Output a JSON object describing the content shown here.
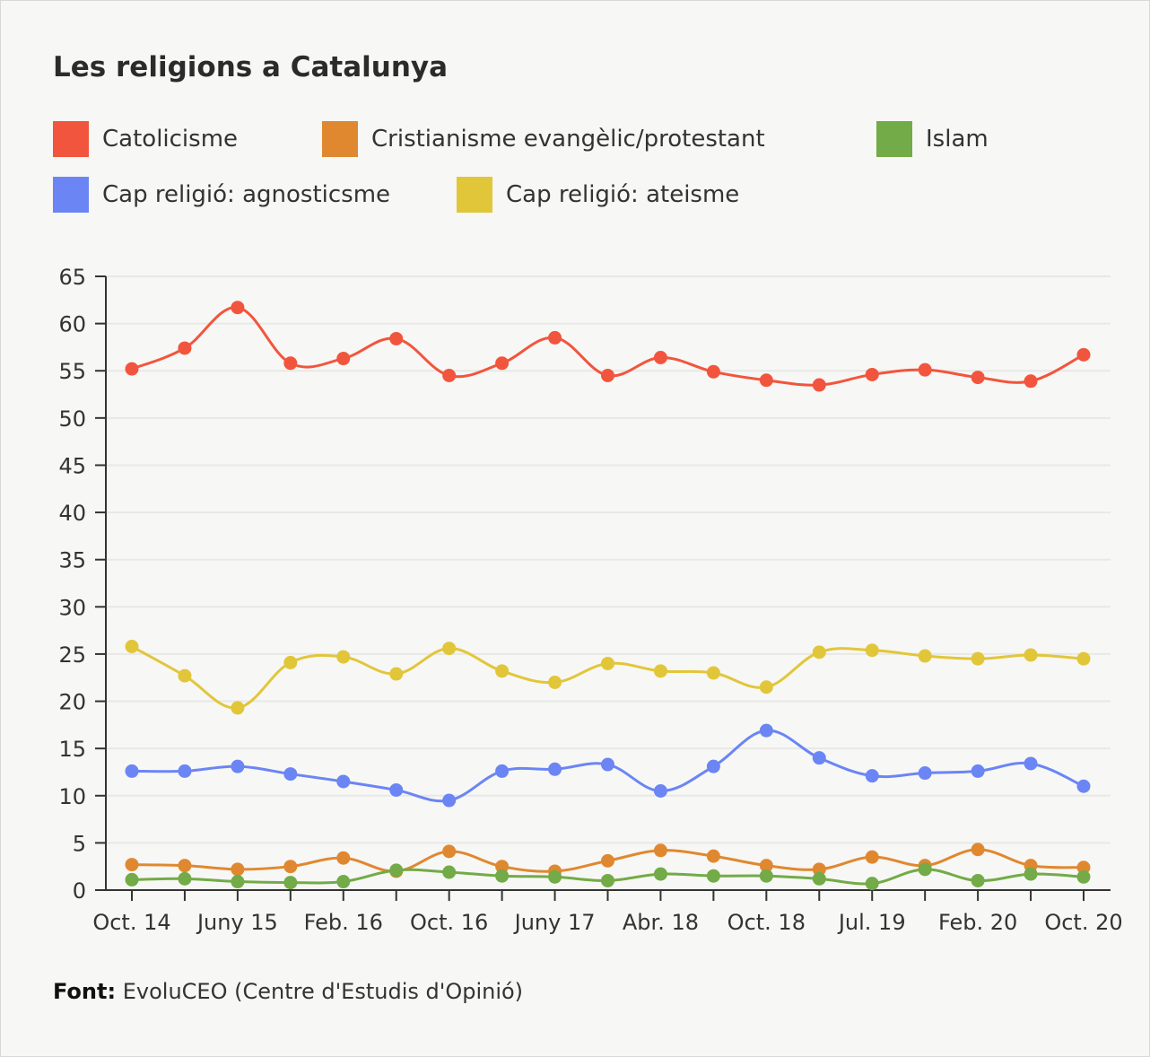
{
  "chart_data": {
    "type": "line",
    "title": "Les religions a Catalunya",
    "xlabel": "",
    "ylabel": "",
    "ylim": [
      0,
      65
    ],
    "yticks": [
      0,
      5,
      10,
      15,
      20,
      25,
      30,
      35,
      40,
      45,
      50,
      55,
      60,
      65
    ],
    "grid": true,
    "legend_position": "top",
    "x_tick_labels": [
      "Oct. 14",
      "Juny 15",
      "Feb. 16",
      "Oct. 16",
      "Juny 17",
      "Abr. 18",
      "Oct. 18",
      "Jul. 19",
      "Feb. 20",
      "Oct. 20"
    ],
    "series": [
      {
        "name": "Catolicisme",
        "color": "#f2553d",
        "values": [
          55.2,
          57.4,
          61.7,
          55.8,
          56.3,
          58.4,
          54.5,
          55.8,
          58.5,
          54.5,
          56.4,
          54.9,
          54.0,
          53.5,
          54.6,
          55.1,
          54.3,
          53.9,
          56.7
        ]
      },
      {
        "name": "Cristianisme evangèlic/protestant",
        "color": "#e08830",
        "values": [
          2.7,
          2.6,
          2.2,
          2.5,
          3.4,
          2.0,
          4.1,
          2.5,
          2.0,
          3.1,
          4.2,
          3.6,
          2.6,
          2.2,
          3.5,
          2.6,
          4.3,
          2.6,
          2.4
        ]
      },
      {
        "name": "Islam",
        "color": "#72ab47",
        "values": [
          1.1,
          1.2,
          0.9,
          0.8,
          0.9,
          2.1,
          1.9,
          1.5,
          1.4,
          1.0,
          1.7,
          1.5,
          1.5,
          1.2,
          0.7,
          2.2,
          1.0,
          1.7,
          1.4
        ]
      },
      {
        "name": "Cap religió: agnosticsme",
        "color": "#6b85f5",
        "values": [
          12.6,
          12.6,
          13.1,
          12.3,
          11.5,
          10.6,
          9.5,
          12.6,
          12.8,
          13.3,
          10.5,
          13.1,
          16.9,
          14.0,
          12.1,
          12.4,
          12.6,
          13.4,
          11.0
        ]
      },
      {
        "name": "Cap religió: ateisme",
        "color": "#e2c63a",
        "values": [
          25.8,
          22.7,
          19.3,
          24.1,
          24.7,
          22.9,
          25.6,
          23.2,
          22.0,
          24.0,
          23.2,
          23.0,
          21.5,
          25.2,
          25.4,
          24.8,
          24.5,
          24.9,
          24.5
        ]
      }
    ]
  },
  "source": {
    "label": "Font:",
    "text": "EvoluCEO (Centre d'Estudis d'Opinió)"
  }
}
